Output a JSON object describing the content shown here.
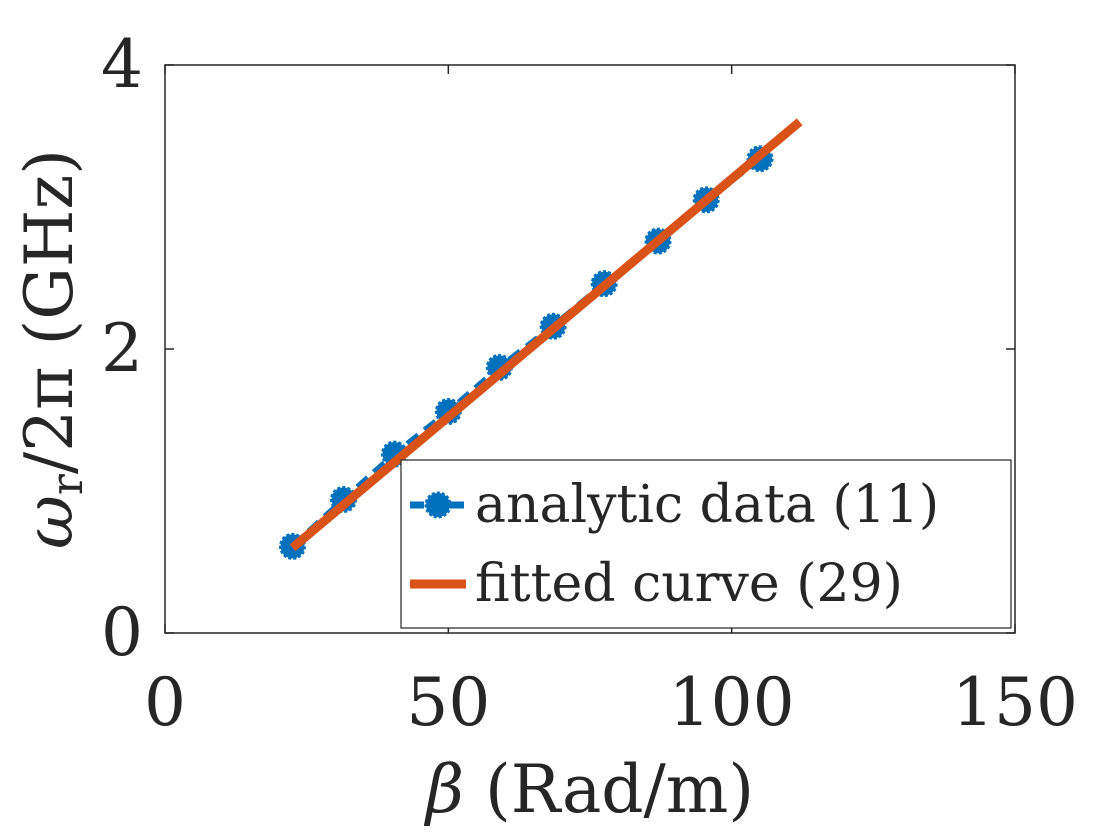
{
  "chart_data": {
    "type": "line",
    "title": "",
    "xlabel": "β (Rad/m)",
    "ylabel_main": "ω",
    "ylabel_sub": "r",
    "ylabel_rest": "/2π (GHz)",
    "xlim": [
      0,
      150
    ],
    "ylim": [
      0,
      4
    ],
    "xticks": [
      0,
      50,
      100,
      150
    ],
    "yticks": [
      0,
      2,
      4
    ],
    "xtick_labels": [
      "0",
      "50",
      "100",
      "150"
    ],
    "ytick_labels": [
      "0",
      "2",
      "4"
    ],
    "grid": false,
    "legend_position": "bottom-right",
    "series": [
      {
        "name": "analytic data (11)",
        "style": "dashed-with-circle-markers",
        "color": "#0072BD",
        "x": [
          22.5,
          31.5,
          40.5,
          50,
          59,
          68.5,
          77.5,
          87,
          95.5,
          105
        ],
        "y": [
          0.61,
          0.94,
          1.26,
          1.56,
          1.87,
          2.16,
          2.46,
          2.76,
          3.05,
          3.34
        ]
      },
      {
        "name": "fitted curve (29)",
        "style": "solid",
        "color": "#D95319",
        "x": [
          22.5,
          112
        ],
        "y": [
          0.6,
          3.6
        ]
      }
    ]
  }
}
